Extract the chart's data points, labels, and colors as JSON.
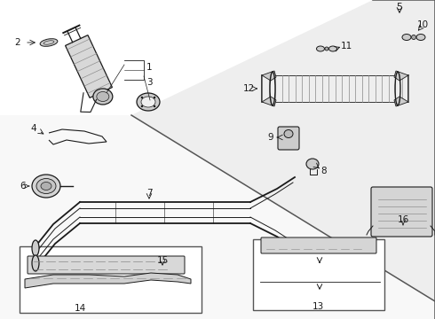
{
  "bg_color": "#ffffff",
  "line_color": "#1a1a1a",
  "figsize": [
    4.9,
    3.6
  ],
  "dpi": 100,
  "shelf_line": [
    [
      148,
      130
    ],
    [
      490,
      340
    ]
  ],
  "shelf_fill": "#e8e8e8",
  "diagonal_line_color": "#666666"
}
